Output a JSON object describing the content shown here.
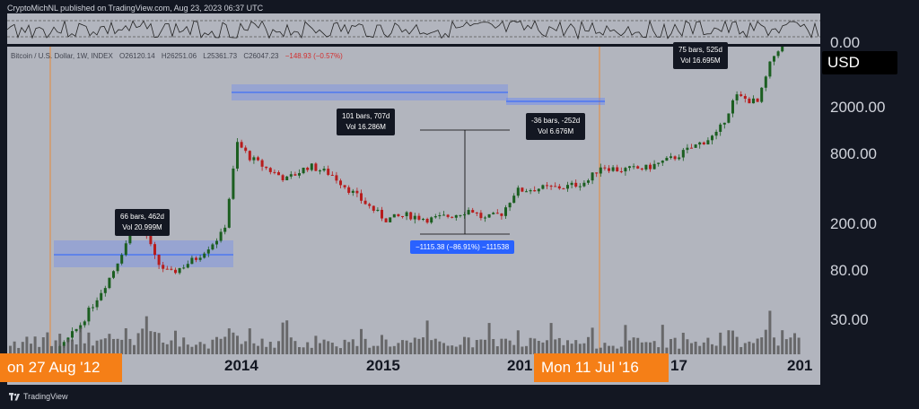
{
  "header": {
    "text": "CryptoMichNL published on TradingView.com, Aug 23, 2023 06:37 UTC"
  },
  "legend": {
    "symbol": "Bitcoin / U.S. Dollar, 1W, INDEX",
    "open": "O26120.14",
    "high": "H26251.06",
    "low": "L25361.73",
    "close": "C26047.23",
    "change": "−148.93 (−0.57%)"
  },
  "price_axis": {
    "ticks": [
      "0.00",
      "2000.00",
      "800.00",
      "200.00",
      "80.00",
      "30.00"
    ],
    "currency": "USD"
  },
  "time_axis": {
    "years": [
      "2014",
      "2015",
      "201",
      "17",
      "201"
    ],
    "badge_left": "on 27 Aug '12",
    "badge_right": "Mon 11 Jul '16"
  },
  "callouts": {
    "c1": {
      "line1": "66 bars, 462d",
      "line2": "Vol 20.999M"
    },
    "c2": {
      "line1": "101 bars, 707d",
      "line2": "Vol 16.286M"
    },
    "c3": {
      "line1": "-36 bars, -252d",
      "line2": "Vol 6.676M"
    },
    "c4": {
      "line1": "75 bars, 525d",
      "line2": "Vol 16.695M"
    },
    "measure": "−1115.38 (−86.91%) −111538"
  },
  "footer": {
    "brand": "TradingView"
  },
  "chart_data": {
    "type": "candlestick",
    "title": "Bitcoin / U.S. Dollar, 1W, INDEX",
    "scale": "log",
    "y_ticks": [
      30,
      80,
      200,
      800,
      2000
    ],
    "x_labels": [
      "2014",
      "2015",
      "201",
      "17",
      "201"
    ],
    "ohlc_last": {
      "open": 26120.14,
      "high": 26251.06,
      "low": 25361.73,
      "close": 26047.23,
      "change": -148.93,
      "change_pct": -0.57
    },
    "colors": {
      "up": "#1b5e20",
      "down": "#b71c1c",
      "volume": "#555555",
      "range_box": "#5b7fff"
    },
    "annotations": [
      {
        "label": "66 bars, 462d",
        "volume": "20.999M"
      },
      {
        "label": "101 bars, 707d",
        "volume": "16.286M"
      },
      {
        "label": "-36 bars, -252d",
        "volume": "6.676M"
      },
      {
        "label": "75 bars, 525d",
        "volume": "16.695M"
      },
      {
        "label": "−1115.38 (−86.91%) −111538"
      }
    ],
    "price_path": [
      {
        "x": 0,
        "price": 10
      },
      {
        "x": 40,
        "price": 13
      },
      {
        "x": 80,
        "price": 30
      },
      {
        "x": 115,
        "price": 80
      },
      {
        "x": 145,
        "price": 250
      },
      {
        "x": 165,
        "price": 100
      },
      {
        "x": 180,
        "price": 80
      },
      {
        "x": 210,
        "price": 110
      },
      {
        "x": 240,
        "price": 180
      },
      {
        "x": 255,
        "price": 1000
      },
      {
        "x": 270,
        "price": 750
      },
      {
        "x": 290,
        "price": 600
      },
      {
        "x": 310,
        "price": 500
      },
      {
        "x": 335,
        "price": 650
      },
      {
        "x": 360,
        "price": 550
      },
      {
        "x": 390,
        "price": 350
      },
      {
        "x": 420,
        "price": 230
      },
      {
        "x": 445,
        "price": 250
      },
      {
        "x": 470,
        "price": 230
      },
      {
        "x": 495,
        "price": 250
      },
      {
        "x": 515,
        "price": 280
      },
      {
        "x": 530,
        "price": 230
      },
      {
        "x": 550,
        "price": 260
      },
      {
        "x": 565,
        "price": 400
      },
      {
        "x": 590,
        "price": 420
      },
      {
        "x": 620,
        "price": 430
      },
      {
        "x": 645,
        "price": 480
      },
      {
        "x": 660,
        "price": 650
      },
      {
        "x": 680,
        "price": 600
      },
      {
        "x": 710,
        "price": 620
      },
      {
        "x": 740,
        "price": 750
      },
      {
        "x": 770,
        "price": 1000
      },
      {
        "x": 790,
        "price": 1200
      },
      {
        "x": 810,
        "price": 2500
      },
      {
        "x": 835,
        "price": 2200
      },
      {
        "x": 850,
        "price": 5000
      },
      {
        "x": 870,
        "price": 9000
      },
      {
        "x": 880,
        "price": 13000
      }
    ]
  }
}
